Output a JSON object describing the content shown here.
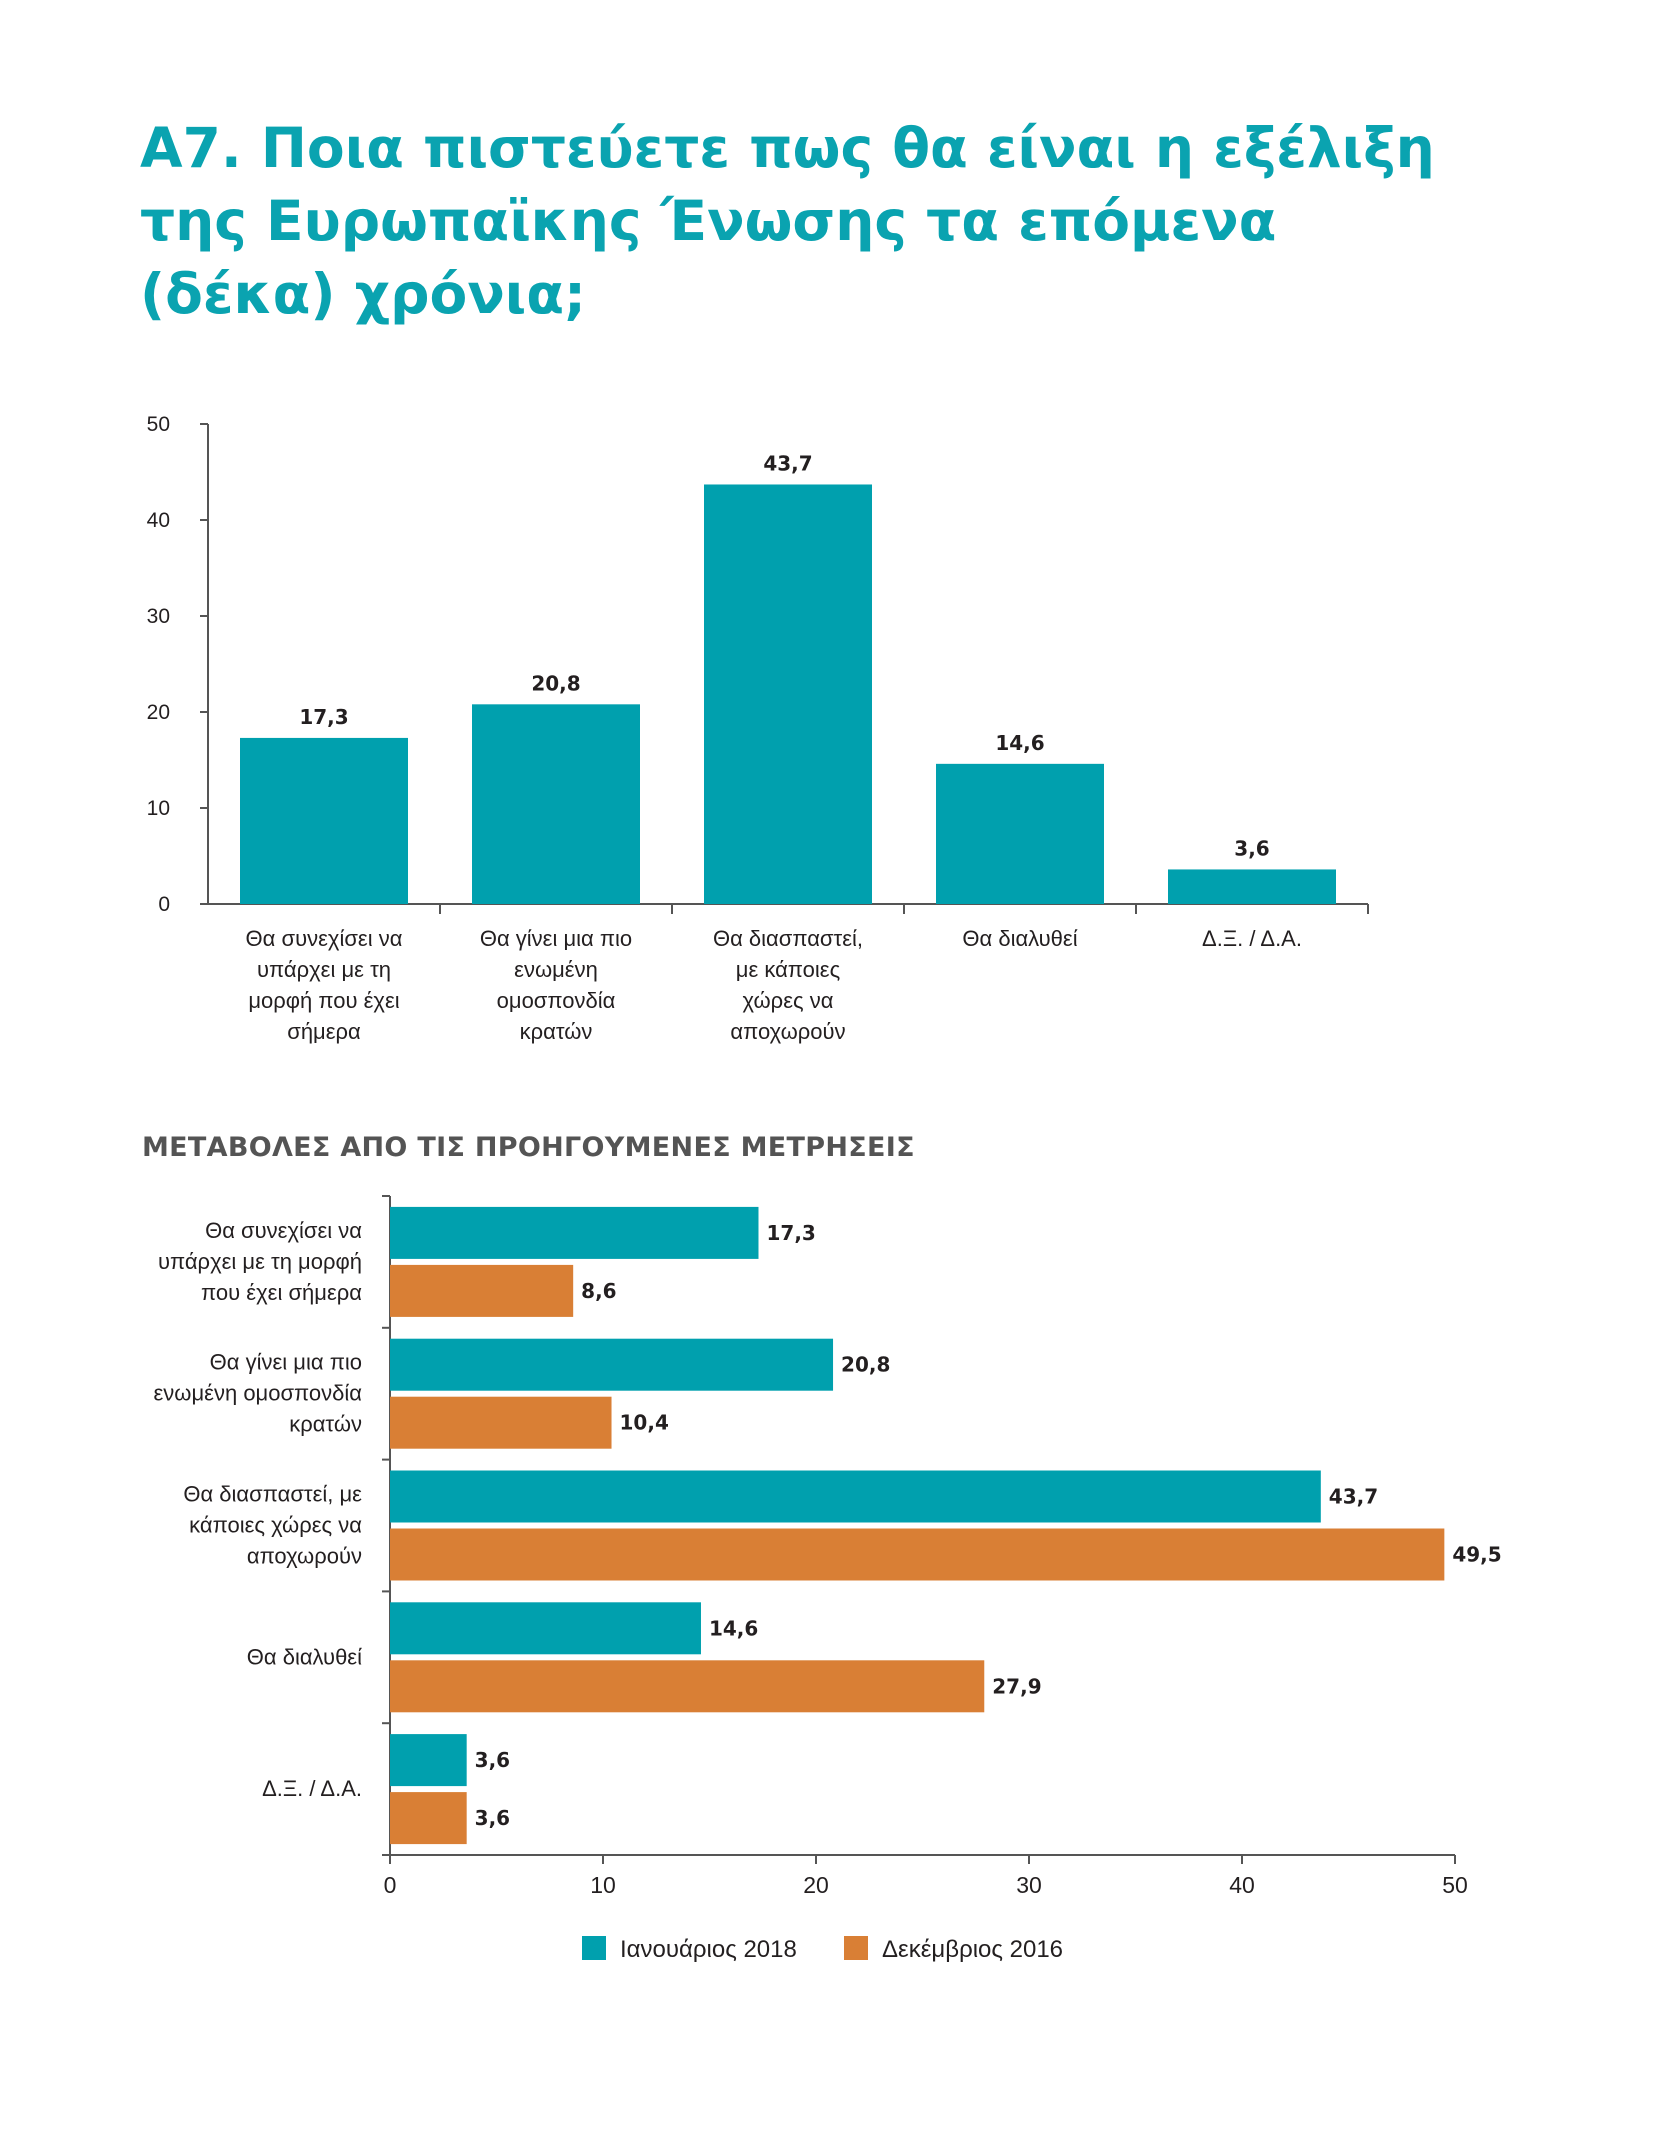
{
  "title": "Α7. Ποια πιστεύετε πως θα είναι η εξέλιξη της Ευρωπαϊκης Ένωσης τα επόμενα (δέκα) χρόνια;",
  "subtitle": "ΜΕΤΑΒΟΛΕΣ ΑΠΟ ΤΙΣ ΠΡΟΗΓΟΥΜΕΝΕΣ ΜΕΤΡΗΣΕΙΣ",
  "colors": {
    "teal": "#00a0ae",
    "orange": "#d97f35",
    "title": "#0aa3b0"
  },
  "chart_data": [
    {
      "type": "bar",
      "orientation": "vertical",
      "categories": [
        [
          "Θα συνεχίσει να",
          "υπάρχει με τη",
          "μορφή που έχει",
          "σήμερα"
        ],
        [
          "Θα γίνει μια πιο",
          "ενωμένη",
          "ομοσπονδία",
          "κρατών"
        ],
        [
          "Θα διασπαστεί,",
          "με κάποιες",
          "χώρες να",
          "αποχωρούν"
        ],
        [
          "Θα διαλυθεί"
        ],
        [
          "Δ.Ξ. / Δ.Α."
        ]
      ],
      "values": [
        17.3,
        20.8,
        43.7,
        14.6,
        3.6
      ],
      "value_labels": [
        "17,3",
        "20,8",
        "43,7",
        "14,6",
        "3,6"
      ],
      "yticks": [
        "0",
        "10",
        "20",
        "30",
        "40",
        "50"
      ],
      "ylim": [
        0,
        50
      ],
      "color": "#00a0ae",
      "grid": false
    },
    {
      "type": "bar",
      "orientation": "horizontal",
      "categories": [
        [
          "Θα συνεχίσει να",
          "υπάρχει με τη μορφή",
          "που έχει σήμερα"
        ],
        [
          "Θα γίνει μια πιο",
          "ενωμένη ομοσπονδία",
          "κρατών"
        ],
        [
          "Θα διασπαστεί, με",
          "κάποιες χώρες να",
          "αποχωρούν"
        ],
        [
          "Θα διαλυθεί"
        ],
        [
          "Δ.Ξ. / Δ.Α."
        ]
      ],
      "series": [
        {
          "name": "Ιανουάριος 2018",
          "color": "#00a0ae",
          "values": [
            17.3,
            20.8,
            43.7,
            14.6,
            3.6
          ],
          "labels": [
            "17,3",
            "20,8",
            "43,7",
            "14,6",
            "3,6"
          ]
        },
        {
          "name": "Δεκέμβριος 2016",
          "color": "#d97f35",
          "values": [
            8.6,
            10.4,
            49.5,
            27.9,
            3.6
          ],
          "labels": [
            "8,6",
            "10,4",
            "49,5",
            "27,9",
            "3,6"
          ]
        }
      ],
      "xticks": [
        "0",
        "10",
        "20",
        "30",
        "40",
        "50"
      ],
      "xlim": [
        0,
        50
      ],
      "legend_position": "bottom",
      "grid": false
    }
  ]
}
